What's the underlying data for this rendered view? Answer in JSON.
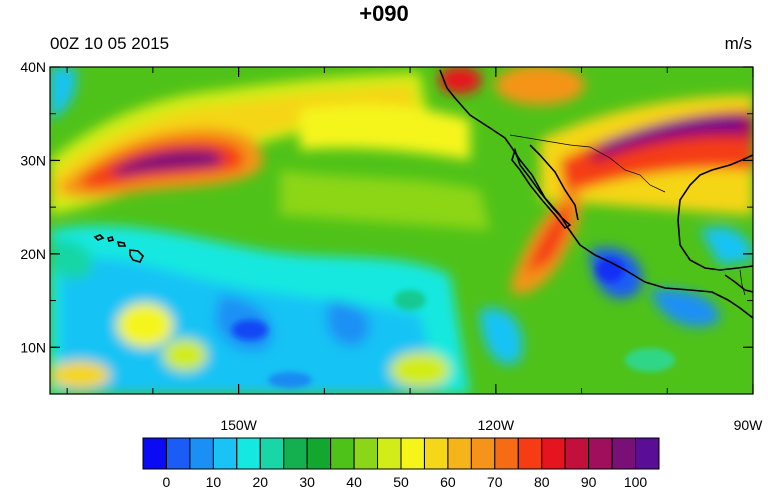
{
  "title": "+090",
  "date_label": "00Z 10 05 2015",
  "units_label": "m/s",
  "map": {
    "projection": "cylindrical-equidistant",
    "lon_range": [
      -172,
      -90
    ],
    "lat_range": [
      5,
      40
    ],
    "lat_ticks": [
      {
        "value": 40,
        "label": "40N"
      },
      {
        "value": 30,
        "label": "30N"
      },
      {
        "value": 20,
        "label": "20N"
      },
      {
        "value": 10,
        "label": "10N"
      }
    ],
    "lon_ticks": [
      {
        "value": -150,
        "label": "150W"
      },
      {
        "value": -120,
        "label": "120W"
      },
      {
        "value": -90,
        "label": "90W"
      }
    ]
  },
  "colorbar": {
    "colors": [
      "#0a0af5",
      "#1a5cf5",
      "#1a90f5",
      "#19c3f5",
      "#14e8e0",
      "#19d6a6",
      "#14b050",
      "#12a830",
      "#4fc219",
      "#8cd619",
      "#d2ec19",
      "#f5f51a",
      "#f5d619",
      "#f5b419",
      "#f59419",
      "#f56c14",
      "#f53c14",
      "#e6141e",
      "#c30f3c",
      "#a00f5c",
      "#7a0f78",
      "#5a0e96"
    ],
    "labels": [
      "0",
      "10",
      "20",
      "30",
      "40",
      "50",
      "60",
      "70",
      "80",
      "90",
      "100"
    ]
  }
}
